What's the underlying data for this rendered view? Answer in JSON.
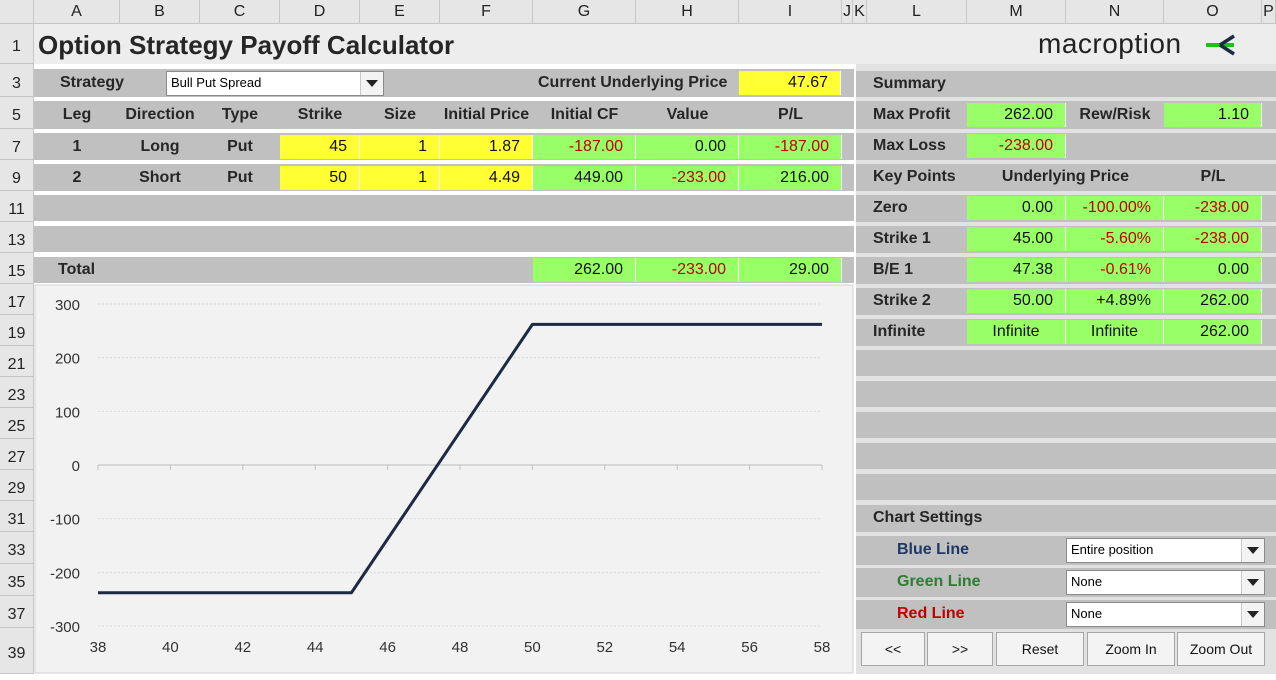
{
  "columns": [
    "A",
    "B",
    "C",
    "D",
    "E",
    "F",
    "G",
    "H",
    "I",
    "J",
    "K",
    "L",
    "M",
    "N",
    "O",
    "P"
  ],
  "rows": [
    "1",
    "3",
    "5",
    "7",
    "9",
    "11",
    "13",
    "15",
    "17",
    "19",
    "21",
    "23",
    "25",
    "27",
    "29",
    "31",
    "33",
    "35",
    "37",
    "39"
  ],
  "title": "Option Strategy Payoff Calculator",
  "logo_text": "macroption",
  "strategy": {
    "label": "Strategy",
    "value": "Bull Put Spread"
  },
  "underlying": {
    "label": "Current Underlying Price",
    "value": "47.67"
  },
  "legs_header": {
    "leg": "Leg",
    "direction": "Direction",
    "type": "Type",
    "strike": "Strike",
    "size": "Size",
    "initial_price": "Initial Price",
    "initial_cf": "Initial CF",
    "value": "Value",
    "pl": "P/L"
  },
  "legs": [
    {
      "leg": "1",
      "direction": "Long",
      "type": "Put",
      "strike": "45",
      "size": "1",
      "initial_price": "1.87",
      "initial_cf": "-187.00",
      "value": "0.00",
      "pl": "-187.00"
    },
    {
      "leg": "2",
      "direction": "Short",
      "type": "Put",
      "strike": "50",
      "size": "1",
      "initial_price": "4.49",
      "initial_cf": "449.00",
      "value": "-233.00",
      "pl": "216.00"
    }
  ],
  "total": {
    "label": "Total",
    "initial_cf": "262.00",
    "value": "-233.00",
    "pl": "29.00"
  },
  "summary": {
    "label": "Summary",
    "max_profit_label": "Max Profit",
    "max_profit": "262.00",
    "rew_risk_label": "Rew/Risk",
    "rew_risk": "1.10",
    "max_loss_label": "Max Loss",
    "max_loss": "-238.00"
  },
  "key_points": {
    "header": {
      "label": "Key Points",
      "underlying": "Underlying Price",
      "pl": "P/L"
    },
    "rows": [
      {
        "label": "Zero",
        "price": "0.00",
        "pct": "-100.00%",
        "pl": "-238.00"
      },
      {
        "label": "Strike 1",
        "price": "45.00",
        "pct": "-5.60%",
        "pl": "-238.00"
      },
      {
        "label": "B/E 1",
        "price": "47.38",
        "pct": "-0.61%",
        "pl": "0.00"
      },
      {
        "label": "Strike 2",
        "price": "50.00",
        "pct": "+4.89%",
        "pl": "262.00"
      },
      {
        "label": "Infinite",
        "price": "Infinite",
        "pct": "Infinite",
        "pl": "262.00"
      }
    ]
  },
  "chart_settings": {
    "label": "Chart Settings",
    "lines": [
      {
        "label": "Blue Line",
        "value": "Entire position",
        "color": "#1f3864"
      },
      {
        "label": "Green Line",
        "value": "None",
        "color": "#2e7d32"
      },
      {
        "label": "Red Line",
        "value": "None",
        "color": "#c00000"
      }
    ]
  },
  "buttons": [
    "<<",
    ">>",
    "Reset",
    "Zoom In",
    "Zoom Out"
  ],
  "colors": {
    "input": "#ffff33",
    "output": "#99ff66",
    "negative": "#c00000",
    "band": "#c0c0c0",
    "line": "#1c2a44"
  },
  "chart_data": {
    "type": "line",
    "x": [
      38,
      45,
      50,
      58
    ],
    "series": [
      {
        "values": [
          -238,
          -238,
          262,
          262
        ]
      }
    ],
    "xlim": [
      38,
      58
    ],
    "ylim": [
      -300,
      300
    ],
    "xticks": [
      "38",
      "40",
      "42",
      "44",
      "46",
      "48",
      "50",
      "52",
      "54",
      "56",
      "58"
    ],
    "yticks": [
      "300",
      "200",
      "100",
      "0",
      "-100",
      "-200",
      "-300"
    ],
    "title": "",
    "xlabel": "",
    "ylabel": "",
    "grid": true
  }
}
